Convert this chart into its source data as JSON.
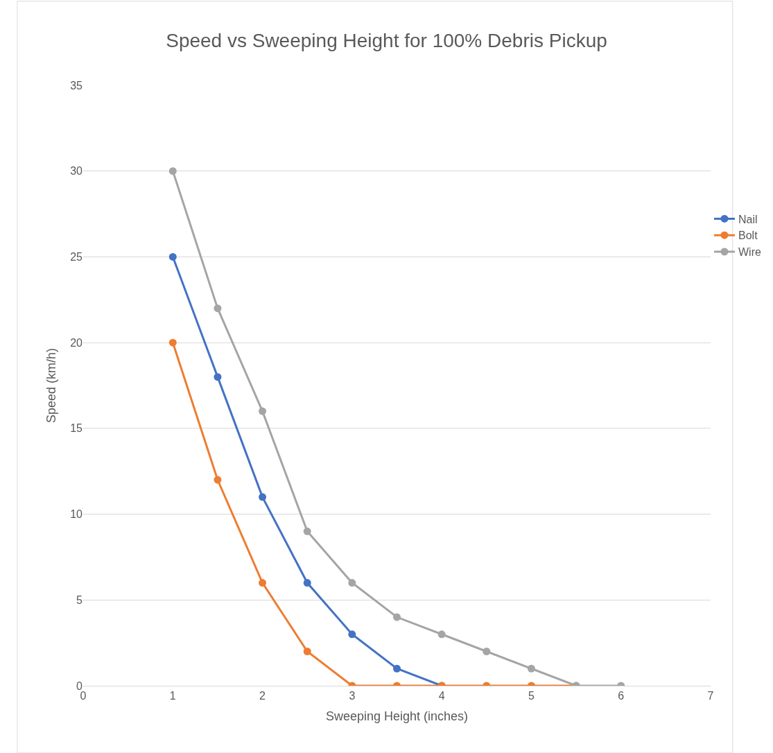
{
  "chart_data": {
    "type": "line",
    "title": "Speed vs Sweeping Height for 100% Debris Pickup",
    "xlabel": "Sweeping Height (inches)",
    "ylabel": "Speed (km/h)",
    "series": [
      {
        "name": "Nail",
        "color": "#4472c4",
        "x": [
          1,
          1.5,
          2,
          2.5,
          3,
          3.5,
          4
        ],
        "values": [
          25,
          18,
          11,
          6,
          3,
          1,
          0
        ]
      },
      {
        "name": "Bolt",
        "color": "#ed7d31",
        "x": [
          1,
          1.5,
          2,
          2.5,
          3,
          3.5,
          4,
          4.5,
          5,
          5.5
        ],
        "values": [
          20,
          12,
          6,
          2,
          0,
          0,
          0,
          0,
          0,
          0
        ]
      },
      {
        "name": "Wire",
        "color": "#a5a5a5",
        "x": [
          1,
          1.5,
          2,
          2.5,
          3,
          3.5,
          4,
          4.5,
          5,
          5.5,
          6
        ],
        "values": [
          30,
          22,
          16,
          9,
          6,
          4,
          3,
          2,
          1,
          0,
          0
        ]
      }
    ],
    "xlim": [
      0,
      7
    ],
    "xticks": [
      0,
      1,
      2,
      3,
      4,
      5,
      6,
      7
    ],
    "ylim": [
      0,
      35
    ],
    "yticks": [
      0,
      5,
      10,
      15,
      20,
      25,
      30,
      35
    ],
    "grid": "y",
    "legend": "right",
    "marker": "circle",
    "line_style": "solid"
  }
}
